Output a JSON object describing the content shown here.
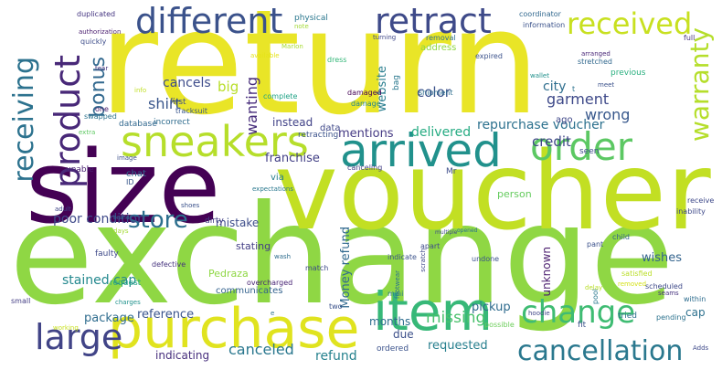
{
  "words": [
    {
      "text": "return",
      "color": "#e9e527"
    },
    {
      "text": "exchange",
      "color": "#8fd744"
    },
    {
      "text": "voucher",
      "color": "#c2df23"
    },
    {
      "text": "size",
      "color": "#440154"
    },
    {
      "text": "purchase",
      "color": "#e0e31f"
    },
    {
      "text": "item",
      "color": "#37b878"
    },
    {
      "text": "arrived",
      "color": "#21918c"
    },
    {
      "text": "sneakers",
      "color": "#b6de2b"
    },
    {
      "text": "retract",
      "color": "#3e4a89"
    },
    {
      "text": "different",
      "color": "#3b528b"
    },
    {
      "text": "order",
      "color": "#5cc863"
    },
    {
      "text": "received",
      "color": "#c8e020"
    },
    {
      "text": "product",
      "color": "#482878"
    },
    {
      "text": "receiving",
      "color": "#2c728e"
    },
    {
      "text": "change",
      "color": "#3fbc73"
    },
    {
      "text": "cancellation",
      "color": "#2a788e"
    },
    {
      "text": "large",
      "color": "#414487"
    },
    {
      "text": "store",
      "color": "#2d708e"
    },
    {
      "text": "warranty",
      "color": "#b5de2b"
    },
    {
      "text": "bonus",
      "color": "#31688e"
    },
    {
      "text": "shirt",
      "color": "#39568c"
    },
    {
      "text": "big",
      "color": "#b8de29"
    },
    {
      "text": "wanting",
      "color": "#472d7b"
    },
    {
      "text": "garment",
      "color": "#3e4989"
    },
    {
      "text": "color",
      "color": "#3b518b"
    },
    {
      "text": "cancels",
      "color": "#3e4c8a"
    },
    {
      "text": "website",
      "color": "#287d8e"
    },
    {
      "text": "repurchase voucher",
      "color": "#2c718e"
    },
    {
      "text": "wrong",
      "color": "#38588c"
    },
    {
      "text": "city",
      "color": "#2e6e8e"
    },
    {
      "text": "credit",
      "color": "#404688"
    },
    {
      "text": "poor condition",
      "color": "#3e4989"
    },
    {
      "text": "instead",
      "color": "#414287"
    },
    {
      "text": "franchise",
      "color": "#423f85"
    },
    {
      "text": "mentions",
      "color": "#443983"
    },
    {
      "text": "delivered",
      "color": "#25ab82"
    },
    {
      "text": "Money refund",
      "color": "#30698e"
    },
    {
      "text": "missing",
      "color": "#4ac16d"
    },
    {
      "text": "stained cap",
      "color": "#23888e"
    },
    {
      "text": "package",
      "color": "#2f6c8e"
    },
    {
      "text": "reference",
      "color": "#3a548c"
    },
    {
      "text": "requested",
      "color": "#277f8e"
    },
    {
      "text": "pickup",
      "color": "#2f6c8e"
    },
    {
      "text": "months",
      "color": "#2e6d8e"
    },
    {
      "text": "due",
      "color": "#3c4f8a"
    },
    {
      "text": "canceled",
      "color": "#2a778e"
    },
    {
      "text": "refund",
      "color": "#26828e"
    },
    {
      "text": "indicating",
      "color": "#472f7d"
    },
    {
      "text": "mistake",
      "color": "#3d4d8a"
    },
    {
      "text": "stating",
      "color": "#433e85"
    },
    {
      "text": "unknown",
      "color": "#481a6c"
    },
    {
      "text": "wishes",
      "color": "#33638d"
    },
    {
      "text": "person",
      "color": "#65cb5e"
    },
    {
      "text": "cap",
      "color": "#2d718e"
    },
    {
      "text": "chat",
      "color": "#31688e"
    },
    {
      "text": "ago",
      "color": "#3f4788"
    },
    {
      "text": "first",
      "color": "#3d4e8a"
    },
    {
      "text": "data",
      "color": "#3f4889"
    },
    {
      "text": "retracting",
      "color": "#3b528b"
    },
    {
      "text": "communicates",
      "color": "#33628d"
    },
    {
      "text": "Pedraza",
      "color": "#8fd744"
    },
    {
      "text": "via",
      "color": "#277e8e"
    },
    {
      "text": "seen",
      "color": "#3e4c8a"
    },
    {
      "text": "duplicated",
      "color": "#453581"
    },
    {
      "text": "authorization",
      "color": "#481b6d"
    },
    {
      "text": "quickly",
      "color": "#3d4d8a"
    },
    {
      "text": "tear",
      "color": "#46337e"
    },
    {
      "text": "available",
      "color": "#e5e419"
    },
    {
      "text": "physical",
      "color": "#2a778e"
    },
    {
      "text": "coordinator",
      "color": "#31688e"
    },
    {
      "text": "information",
      "color": "#3b528b"
    },
    {
      "text": "address",
      "color": "#8fd744"
    },
    {
      "text": "removal",
      "color": "#2d708e"
    },
    {
      "text": "turning",
      "color": "#3f4788"
    },
    {
      "text": "Marlon",
      "color": "#a8db34"
    },
    {
      "text": "dress",
      "color": "#35b779"
    },
    {
      "text": "bag",
      "color": "#2a788e"
    },
    {
      "text": "expired",
      "color": "#3b528b"
    },
    {
      "text": "stretched",
      "color": "#31688e"
    },
    {
      "text": "arranged",
      "color": "#482677"
    },
    {
      "text": "previous",
      "color": "#29af7f"
    },
    {
      "text": "wallet",
      "color": "#21918c"
    },
    {
      "text": "full",
      "color": "#46327e"
    },
    {
      "text": "info",
      "color": "#c0df25"
    },
    {
      "text": "complete",
      "color": "#20a386"
    },
    {
      "text": "damaged",
      "color": "#440154"
    },
    {
      "text": "damage",
      "color": "#25858e"
    },
    {
      "text": "shipment",
      "color": "#2e6e8e"
    },
    {
      "text": "tracksuit",
      "color": "#39568c"
    },
    {
      "text": "incorrect",
      "color": "#2f6c8e"
    },
    {
      "text": "swapped",
      "color": "#2c728e"
    },
    {
      "text": "database",
      "color": "#31688e"
    },
    {
      "text": "extra",
      "color": "#5ec962"
    },
    {
      "text": "image",
      "color": "#3c4f8a"
    },
    {
      "text": "unable",
      "color": "#482071"
    },
    {
      "text": "ID",
      "color": "#38588c"
    },
    {
      "text": "Mr",
      "color": "#3d4d8a"
    },
    {
      "text": "canceling",
      "color": "#433e85"
    },
    {
      "text": "expectations",
      "color": "#2a788e"
    },
    {
      "text": "shoes",
      "color": "#3b528b"
    },
    {
      "text": "dirty",
      "color": "#433d84"
    },
    {
      "text": "adult",
      "color": "#404688"
    },
    {
      "text": "days",
      "color": "#a5db36"
    },
    {
      "text": "faulty",
      "color": "#3e4989"
    },
    {
      "text": "defective",
      "color": "#46337e"
    },
    {
      "text": "wash",
      "color": "#2e6d8e"
    },
    {
      "text": "request",
      "color": "#22a785"
    },
    {
      "text": "charges",
      "color": "#20928c"
    },
    {
      "text": "overcharged",
      "color": "#482374"
    },
    {
      "text": "match",
      "color": "#3e4a89"
    },
    {
      "text": "mini",
      "color": "#2a788e"
    },
    {
      "text": "footwear",
      "color": "#2c728e"
    },
    {
      "text": "scratch",
      "color": "#3f4889"
    },
    {
      "text": "undone",
      "color": "#3b528b"
    },
    {
      "text": "apart",
      "color": "#3e4c8a"
    },
    {
      "text": "indicate",
      "color": "#3b528b"
    },
    {
      "text": "opened",
      "color": "#2c728e"
    },
    {
      "text": "pant",
      "color": "#3b528b"
    },
    {
      "text": "child",
      "color": "#33638d"
    },
    {
      "text": "satisfied",
      "color": "#bade28"
    },
    {
      "text": "receive",
      "color": "#3e4989"
    },
    {
      "text": "inability",
      "color": "#3e4989"
    },
    {
      "text": "removed",
      "color": "#d5e21a"
    },
    {
      "text": "scheduled",
      "color": "#3e4a89"
    },
    {
      "text": "seams",
      "color": "#46327e"
    },
    {
      "text": "within",
      "color": "#2e6d8e"
    },
    {
      "text": "tried",
      "color": "#2d708e"
    },
    {
      "text": "pending",
      "color": "#2c728e"
    },
    {
      "text": "hoodie",
      "color": "#404688"
    },
    {
      "text": "possible",
      "color": "#6ccd5a"
    },
    {
      "text": "fit",
      "color": "#3b528b"
    },
    {
      "text": "pool",
      "color": "#2a788e"
    },
    {
      "text": "delay",
      "color": "#b8de29"
    },
    {
      "text": "small",
      "color": "#433d84"
    },
    {
      "text": "working",
      "color": "#c8e020"
    },
    {
      "text": "two",
      "color": "#3b528b"
    },
    {
      "text": "note",
      "color": "#a2da37"
    },
    {
      "text": "one",
      "color": "#48186a"
    },
    {
      "text": "e",
      "color": "#2c728e"
    },
    {
      "text": "t",
      "color": "#2c728e"
    },
    {
      "text": "Adds",
      "color": "#3e4989"
    },
    {
      "text": "ordered",
      "color": "#3b528b"
    },
    {
      "text": "meet",
      "color": "#3b528b"
    },
    {
      "text": "brand",
      "color": "#2e6e8e"
    },
    {
      "text": "multiple",
      "color": "#3e4a89"
    }
  ]
}
